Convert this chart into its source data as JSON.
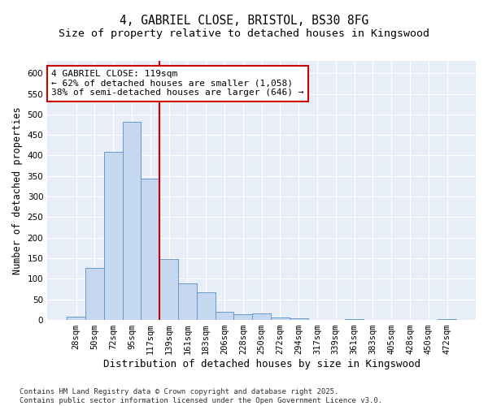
{
  "title_line1": "4, GABRIEL CLOSE, BRISTOL, BS30 8FG",
  "title_line2": "Size of property relative to detached houses in Kingswood",
  "xlabel": "Distribution of detached houses by size in Kingswood",
  "ylabel": "Number of detached properties",
  "categories": [
    "28sqm",
    "50sqm",
    "72sqm",
    "95sqm",
    "117sqm",
    "139sqm",
    "161sqm",
    "183sqm",
    "206sqm",
    "228sqm",
    "250sqm",
    "272sqm",
    "294sqm",
    "317sqm",
    "339sqm",
    "361sqm",
    "383sqm",
    "405sqm",
    "428sqm",
    "450sqm",
    "472sqm"
  ],
  "values": [
    8,
    127,
    408,
    482,
    343,
    148,
    90,
    68,
    20,
    14,
    15,
    7,
    5,
    0,
    0,
    3,
    0,
    0,
    0,
    0,
    3
  ],
  "bar_color": "#c5d8f0",
  "bar_edge_color": "#6699cc",
  "ref_line_x": 4.5,
  "ref_line_color": "#cc0000",
  "annotation_label": "4 GABRIEL CLOSE: 119sqm",
  "annotation_left": "← 62% of detached houses are smaller (1,058)",
  "annotation_right": "38% of semi-detached houses are larger (646) →",
  "annotation_box_facecolor": "#ffffff",
  "annotation_box_edgecolor": "#cc0000",
  "ylim": [
    0,
    630
  ],
  "yticks": [
    0,
    50,
    100,
    150,
    200,
    250,
    300,
    350,
    400,
    450,
    500,
    550,
    600
  ],
  "bg_color": "#ffffff",
  "plot_bg_color": "#e8eef8",
  "grid_color": "#ffffff",
  "footnote": "Contains HM Land Registry data © Crown copyright and database right 2025.\nContains public sector information licensed under the Open Government Licence v3.0.",
  "title_fontsize": 10.5,
  "subtitle_fontsize": 9.5,
  "xlabel_fontsize": 9,
  "ylabel_fontsize": 8.5,
  "tick_fontsize": 7.5,
  "annotation_fontsize": 8,
  "footnote_fontsize": 6.5
}
